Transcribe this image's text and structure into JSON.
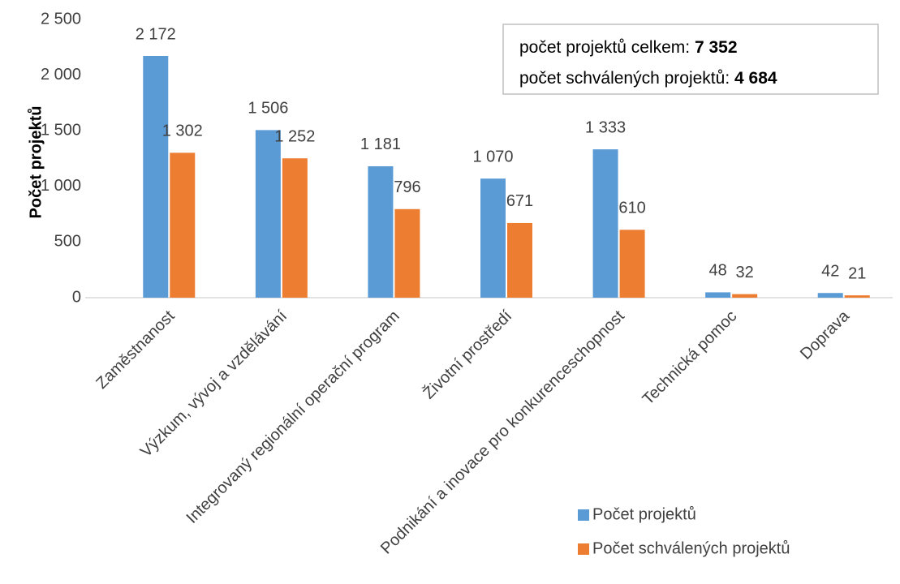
{
  "chart_data": {
    "type": "bar",
    "y_label": "Počet projektů",
    "categories": [
      "Zaměstnanost",
      "Výzkum, vývoj a vzdělávání",
      "Integrovaný regionální operační program",
      "Životní prostředí",
      "Podnikání a inovace pro konkurenceschopnost",
      "Technická pomoc",
      "Doprava"
    ],
    "series": [
      {
        "name": "Počet projektů",
        "color": "#5b9bd5",
        "values": [
          2172,
          1506,
          1181,
          1070,
          1333,
          48,
          42
        ],
        "value_labels": [
          "2 172",
          "1 506",
          "1 181",
          "1 070",
          "1 333",
          "48",
          "42"
        ]
      },
      {
        "name": "Počet schválených projektů",
        "color": "#ed7d31",
        "values": [
          1302,
          1252,
          796,
          671,
          610,
          32,
          21
        ],
        "value_labels": [
          "1 302",
          "1 252",
          "796",
          "671",
          "610",
          "32",
          "21"
        ]
      }
    ],
    "ylim": [
      0,
      2500
    ],
    "yticks": [
      0,
      500,
      {
        "value": 1000,
        "label": "1 000"
      },
      {
        "value": 1500,
        "label": "1 500"
      },
      {
        "value": 2000,
        "label": "2 000"
      },
      {
        "value": 2500,
        "label": "2 500"
      }
    ],
    "grid": false,
    "annotations": [
      {
        "text": "počet projektů celkem:",
        "value": 7352,
        "label": "7 352"
      },
      {
        "text": "počet schválených projektů:",
        "value": 4684,
        "label": "4 684"
      }
    ]
  }
}
